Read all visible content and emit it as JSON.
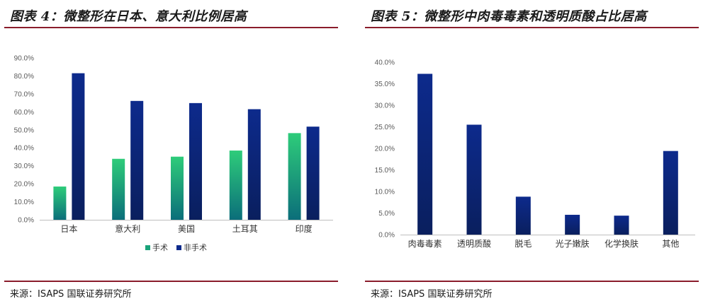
{
  "panels": [
    {
      "title": "图表 4：微整形在日本、意大利比例居高",
      "source": "来源：ISAPS 国联证券研究所"
    },
    {
      "title": "图表 5：微整形中肉毒毒素和透明质酸占比居高",
      "source": "来源：ISAPS 国联证券研究所"
    }
  ],
  "chart_data": [
    {
      "type": "bar",
      "title": "",
      "categories": [
        "日本",
        "意大利",
        "美国",
        "土耳其",
        "印度"
      ],
      "series": [
        {
          "name": "手术",
          "values": [
            18.5,
            33.9,
            35.1,
            38.5,
            48.2
          ],
          "color_top": "#2ecc7a",
          "color_bottom": "#0b6e7a"
        },
        {
          "name": "非手术",
          "values": [
            81.5,
            66.1,
            64.9,
            61.5,
            51.8
          ],
          "color_top": "#0d2a8c",
          "color_bottom": "#0a1f5e"
        }
      ],
      "ylim": [
        0,
        90
      ],
      "yticks": [
        "0.0%",
        "10.0%",
        "20.0%",
        "30.0%",
        "40.0%",
        "50.0%",
        "60.0%",
        "70.0%",
        "80.0%",
        "90.0%"
      ],
      "legend_position": "bottom-center",
      "grid": false
    },
    {
      "type": "bar",
      "title": "",
      "categories": [
        "肉毒毒素",
        "透明质酸",
        "脱毛",
        "光子嫩肤",
        "化学换肤",
        "其他"
      ],
      "series": [
        {
          "values": [
            37.3,
            25.5,
            8.8,
            4.6,
            4.4,
            19.4
          ],
          "color_top": "#0d2a8c",
          "color_bottom": "#0a1f5e"
        }
      ],
      "ylim": [
        0,
        40
      ],
      "yticks": [
        "0.0%",
        "5.0%",
        "10.0%",
        "15.0%",
        "20.0%",
        "25.0%",
        "30.0%",
        "35.0%",
        "40.0%"
      ],
      "grid": false
    }
  ]
}
